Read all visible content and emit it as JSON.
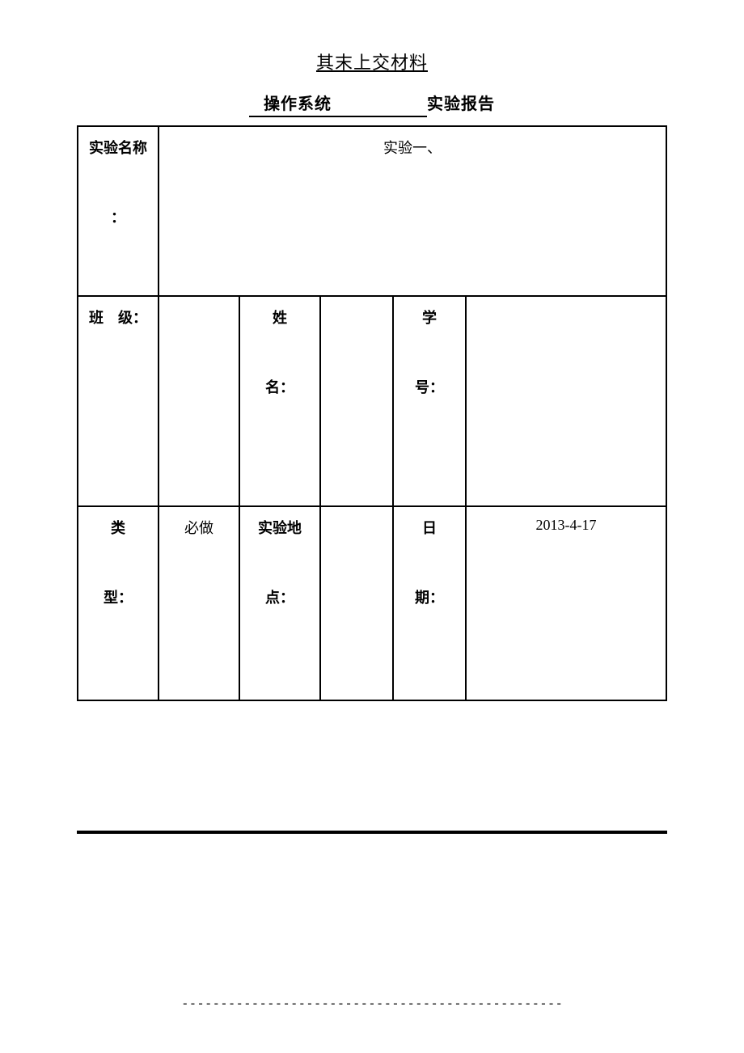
{
  "header": {
    "page_title": "其末上交材料",
    "course_name": "操作系统",
    "report_suffix": "实验报告"
  },
  "table": {
    "row1": {
      "label_line1": "实验名称",
      "label_line2": "：",
      "value": "实验一、"
    },
    "row2": {
      "class_label": "班　级：",
      "class_value": "",
      "name_label_line1": "姓",
      "name_label_line2": "名：",
      "name_value": "",
      "id_label_line1": "学",
      "id_label_line2": "号：",
      "id_value": ""
    },
    "row3": {
      "type_label_line1": "类",
      "type_label_line2": "型：",
      "type_value": "必做",
      "location_label_line1": "实验地",
      "location_label_line2": "点：",
      "location_value": "",
      "date_label_line1": "日",
      "date_label_line2": "期：",
      "date_value": "2013-4-17"
    }
  },
  "footer": {
    "dashes": "-------------------------------------------------"
  },
  "styling": {
    "background_color": "#ffffff",
    "text_color": "#000000",
    "border_color": "#000000",
    "title_fontsize": 22,
    "body_fontsize": 18,
    "font_family": "SimSun"
  }
}
